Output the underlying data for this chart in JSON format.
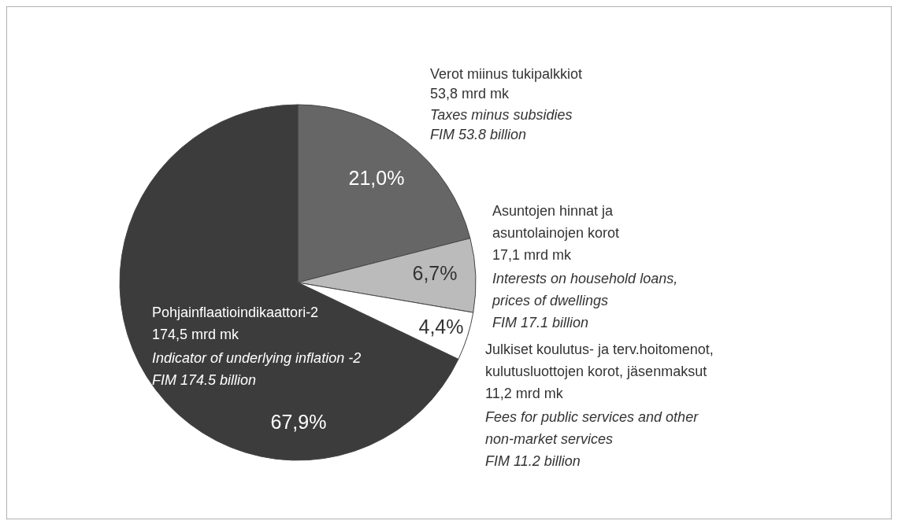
{
  "chart_data": {
    "type": "pie",
    "categories": [
      "Verot miinus tukipalkkiot",
      "Asuntojen hinnat ja asuntolainojen korot",
      "Julkiset koulutus- ja terv.hoitomenot, kulutusluottojen korot, jäsenmaksut",
      "Pohjainflaatioindikaattori-2"
    ],
    "values": [
      21.0,
      6.7,
      4.4,
      67.9
    ],
    "colors": [
      "#666666",
      "#bbbbbb",
      "#ffffff",
      "#3c3c3c"
    ],
    "value_labels": [
      "21,0%",
      "6,7%",
      "4,4%",
      "67,9%"
    ],
    "annotations": [
      "53,8 mrd mk",
      "Taxes minus subsidies",
      "FIM 53.8 billion",
      "17,1 mrd mk",
      "Interests on household loans, prices of dwellings",
      "FIM 17.1 billion",
      "11,2 mrd mk",
      "Fees for public services and other non-market services",
      "FIM 11.2 billion",
      "174,5 mrd mk",
      "Indicator of underlying inflation -2",
      "FIM 174.5 billion"
    ]
  }
}
